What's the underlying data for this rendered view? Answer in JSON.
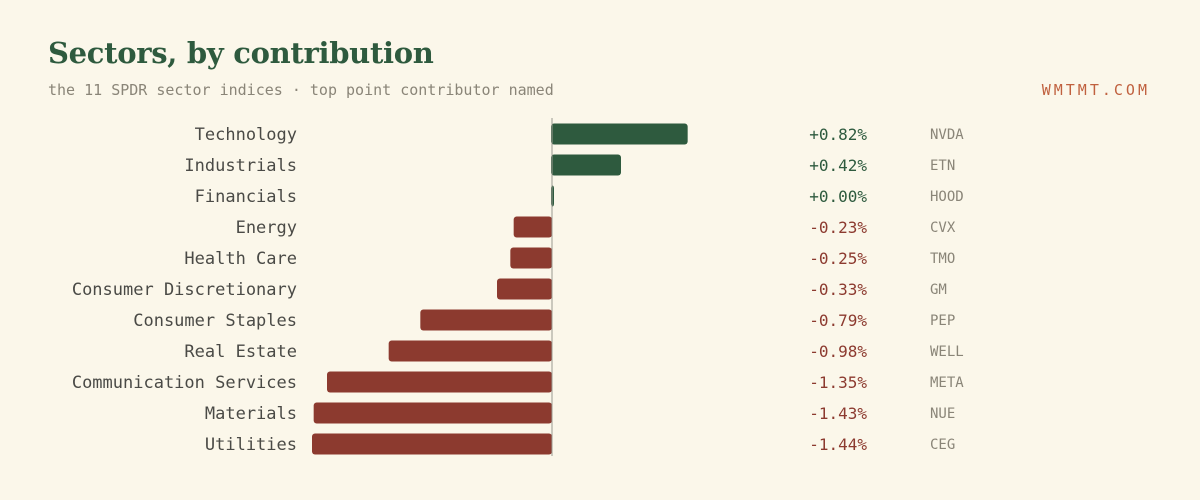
{
  "header": {
    "title": "Sectors, by contribution",
    "subtitle": "the 11 SPDR sector indices · top point contributor named",
    "brand": "WMTMT.COM"
  },
  "colors": {
    "positive": "#2e5a3e",
    "negative": "#8c3a2f",
    "axis": "#9a9a90"
  },
  "chart_data": {
    "type": "bar",
    "orientation": "horizontal",
    "categories": [
      "Technology",
      "Industrials",
      "Financials",
      "Energy",
      "Health Care",
      "Consumer Discretionary",
      "Consumer Staples",
      "Real Estate",
      "Communication Services",
      "Materials",
      "Utilities"
    ],
    "values": [
      0.82,
      0.42,
      0.0,
      -0.23,
      -0.25,
      -0.33,
      -0.79,
      -0.98,
      -1.35,
      -1.43,
      -1.44
    ],
    "value_labels": [
      "+0.82%",
      "+0.42%",
      "+0.00%",
      "-0.23%",
      "-0.25%",
      "-0.33%",
      "-0.79%",
      "-0.98%",
      "-1.35%",
      "-1.43%",
      "-1.44%"
    ],
    "top_contributors": [
      "NVDA",
      "ETN",
      "HOOD",
      "CVX",
      "TMO",
      "GM",
      "PEP",
      "WELL",
      "META",
      "NUE",
      "CEG"
    ],
    "title": "Sectors, by contribution",
    "xlabel": "",
    "ylabel": "",
    "xlim": [
      -1.44,
      0.82
    ],
    "grid": false,
    "legend": "none"
  }
}
